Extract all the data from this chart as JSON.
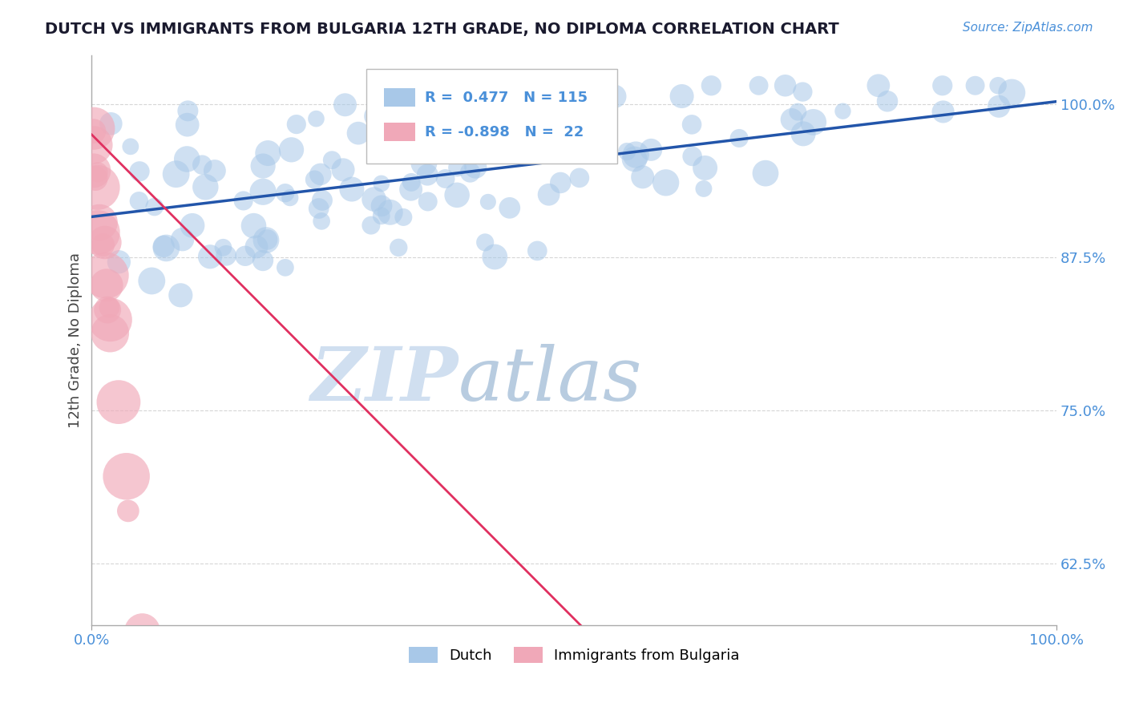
{
  "title": "DUTCH VS IMMIGRANTS FROM BULGARIA 12TH GRADE, NO DIPLOMA CORRELATION CHART",
  "source": "Source: ZipAtlas.com",
  "ylabel": "12th Grade, No Diploma",
  "ytick_labels": [
    "62.5%",
    "75.0%",
    "87.5%",
    "100.0%"
  ],
  "ytick_values": [
    0.625,
    0.75,
    0.875,
    1.0
  ],
  "xlim": [
    0.0,
    1.0
  ],
  "ylim": [
    0.575,
    1.04
  ],
  "blue_R": 0.477,
  "blue_N": 115,
  "pink_R": -0.898,
  "pink_N": 22,
  "blue_color": "#a8c8e8",
  "pink_color": "#f0a8b8",
  "blue_line_color": "#2255aa",
  "pink_line_color": "#e03060",
  "legend_label_blue": "Dutch",
  "legend_label_pink": "Immigrants from Bulgaria",
  "watermark_zip": "ZIP",
  "watermark_atlas": "atlas",
  "watermark_color": "#d0dff0",
  "background_color": "#ffffff",
  "grid_color": "#cccccc",
  "title_color": "#1a1a2e",
  "axis_label_color": "#4a90d9",
  "ylabel_color": "#444444",
  "blue_line_y_start": 0.908,
  "blue_line_y_end": 1.002,
  "pink_line_x_start": 0.0,
  "pink_line_x_end": 1.0,
  "pink_line_y_start": 0.975,
  "pink_line_y_end": 0.185
}
